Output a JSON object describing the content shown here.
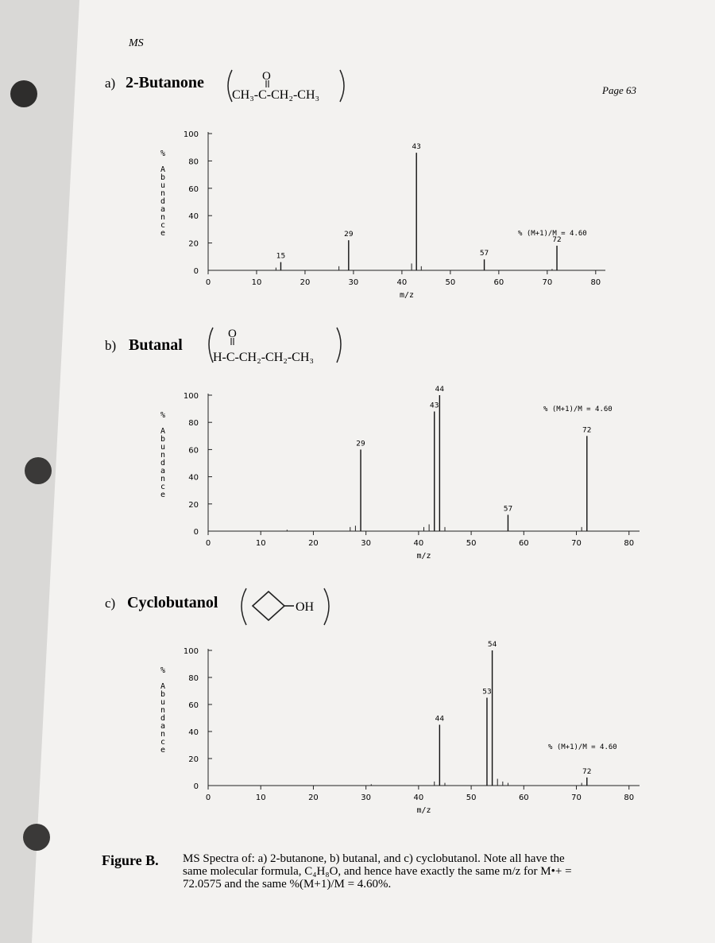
{
  "header": {
    "section": "MS",
    "page": "Page 63"
  },
  "chart_data": [
    {
      "type": "bar",
      "label": "a)",
      "title": "2-Butanone",
      "formula_top": "O",
      "formula": "CH₃-C-CH₂-CH₃",
      "xlabel": "m/z",
      "ylabel": "% Abundance",
      "annotation": "% (M+1)/M =  4.60",
      "xlim": [
        0,
        82
      ],
      "ylim": [
        0,
        100
      ],
      "xticks": [
        0,
        10,
        20,
        30,
        40,
        50,
        60,
        70,
        80
      ],
      "yticks": [
        0,
        20,
        40,
        60,
        80,
        100
      ],
      "peaks": {
        "x": [
          15,
          29,
          43,
          57,
          72
        ],
        "values": [
          6,
          22,
          86,
          8,
          18
        ]
      },
      "minor_peaks": {
        "x": [
          14,
          27,
          42,
          44,
          71
        ],
        "values": [
          2,
          3,
          5,
          3,
          1
        ]
      }
    },
    {
      "type": "bar",
      "label": "b)",
      "title": "Butanal",
      "formula_top": "O",
      "formula": "H-C-CH₂-CH₂-CH₃",
      "xlabel": "m/z",
      "ylabel": "% Abundance",
      "annotation": "% (M+1)/M =  4.60",
      "xlim": [
        0,
        82
      ],
      "ylim": [
        0,
        100
      ],
      "xticks": [
        0,
        10,
        20,
        30,
        40,
        50,
        60,
        70,
        80
      ],
      "yticks": [
        0,
        20,
        40,
        60,
        80,
        100
      ],
      "peaks": {
        "x": [
          29,
          43,
          44,
          57,
          72
        ],
        "values": [
          60,
          88,
          100,
          12,
          70
        ]
      },
      "minor_peaks": {
        "x": [
          15,
          27,
          28,
          41,
          42,
          45,
          71
        ],
        "values": [
          1,
          3,
          4,
          3,
          5,
          3,
          3
        ]
      }
    },
    {
      "type": "bar",
      "label": "c)",
      "title": "Cyclobutanol",
      "formula_top": "",
      "formula": "OH",
      "xlabel": "m/z",
      "ylabel": "% Abundance",
      "annotation": "% (M+1)/M =  4.60",
      "xlim": [
        0,
        82
      ],
      "ylim": [
        0,
        100
      ],
      "xticks": [
        0,
        10,
        20,
        30,
        40,
        50,
        60,
        70,
        80
      ],
      "yticks": [
        0,
        20,
        40,
        60,
        80,
        100
      ],
      "peaks": {
        "x": [
          44,
          53,
          54,
          72
        ],
        "values": [
          45,
          65,
          100,
          6
        ]
      },
      "minor_peaks": {
        "x": [
          31,
          43,
          45,
          55,
          56,
          57,
          71
        ],
        "values": [
          1,
          3,
          2,
          5,
          3,
          2,
          2
        ]
      }
    }
  ],
  "caption": {
    "label": "Figure B.",
    "lines": [
      "MS Spectra of: a) 2-butanone, b) butanal, and c) cyclobutanol.  Note all have the",
      "same molecular formula, C₄H₈O, and hence have exactly the same m/z for M•+ =",
      "72.0575 and the same %(M+1)/M = 4.60%."
    ]
  }
}
